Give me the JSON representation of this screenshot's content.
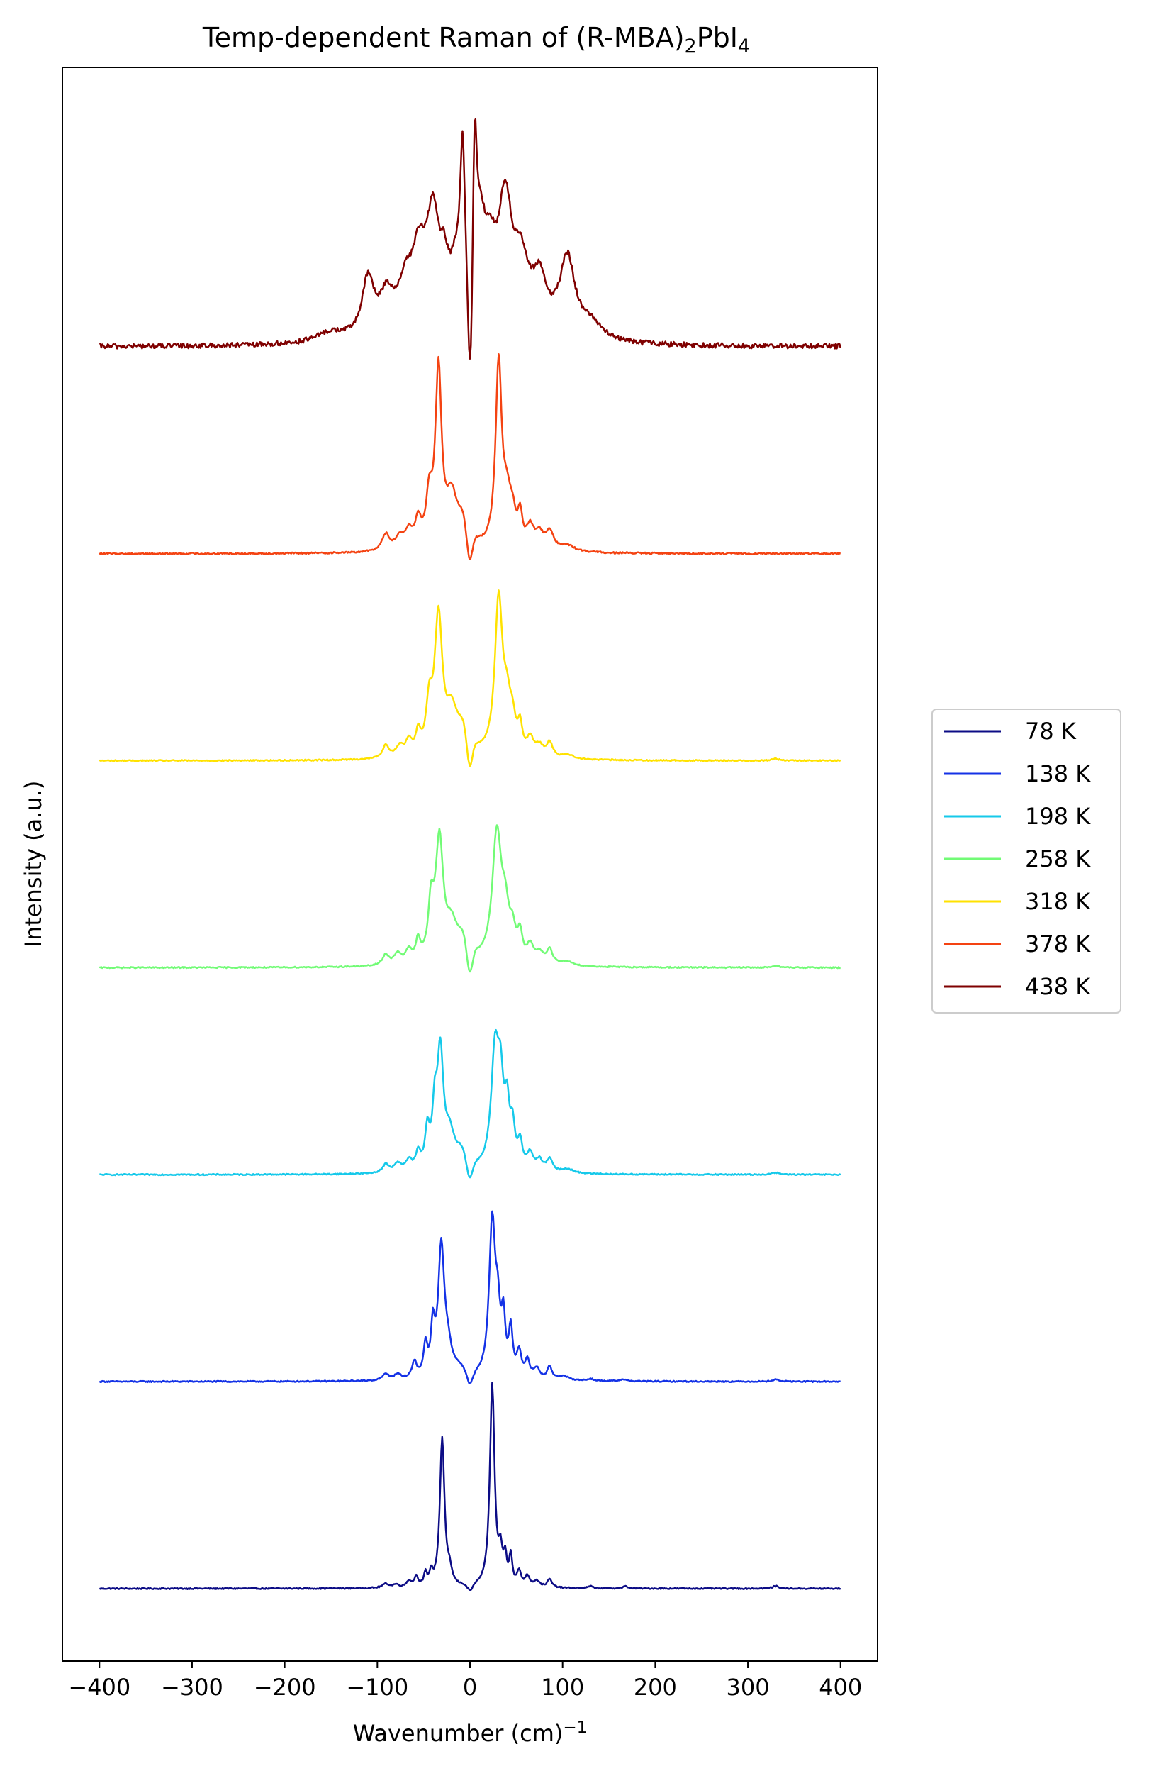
{
  "chart_data": {
    "type": "line",
    "title": "Temp-dependent Raman of (R-MBA)",
    "title_sub1": "2",
    "title_mid": "PbI",
    "title_sub2": "4",
    "xlabel": "Wavenumber (cm)",
    "xlabel_sup": "−1",
    "ylabel": "Intensity (a.u.)",
    "xlim": [
      -440,
      440
    ],
    "ylim": [
      -0.35,
      7.35
    ],
    "xticks": [
      -400,
      -300,
      -200,
      -100,
      0,
      100,
      200,
      300,
      400
    ],
    "xtick_labels": [
      "−400",
      "−300",
      "−200",
      "−100",
      "0",
      "100",
      "200",
      "300",
      "400"
    ],
    "y_ticks_shown": false,
    "grid": false,
    "legend_position": "right, outside",
    "series": [
      {
        "name": "78 K",
        "color": "#0c0c85",
        "offset": 0,
        "noise": 0.003,
        "peaks": [
          [
            -91,
            0.02,
            4
          ],
          [
            -80,
            0.015,
            4
          ],
          [
            -66,
            0.03,
            3
          ],
          [
            -58,
            0.05,
            2.5
          ],
          [
            -48,
            0.06,
            2
          ],
          [
            -42,
            0.06,
            2
          ],
          [
            -30,
            0.72,
            3
          ],
          [
            -22,
            0.06,
            3
          ],
          [
            24,
            0.98,
            3
          ],
          [
            33,
            0.14,
            2.5
          ],
          [
            38,
            0.12,
            2
          ],
          [
            44,
            0.14,
            2
          ],
          [
            53,
            0.07,
            2.5
          ],
          [
            62,
            0.05,
            3
          ],
          [
            72,
            0.03,
            4
          ],
          [
            86,
            0.04,
            3
          ],
          [
            130,
            0.01,
            3
          ],
          [
            168,
            0.01,
            3
          ],
          [
            330,
            0.012,
            4
          ]
        ],
        "dip": [
          0,
          0.06,
          3
        ]
      },
      {
        "name": "138 K",
        "color": "#1432e6",
        "offset": 1,
        "noise": 0.003,
        "peaks": [
          [
            -91,
            0.03,
            4
          ],
          [
            -78,
            0.025,
            5
          ],
          [
            -60,
            0.08,
            3
          ],
          [
            -48,
            0.15,
            2.5
          ],
          [
            -40,
            0.22,
            2.5
          ],
          [
            -31,
            0.62,
            4
          ],
          [
            -24,
            0.12,
            5
          ],
          [
            -12,
            0.04,
            8
          ],
          [
            24,
            0.75,
            4
          ],
          [
            30,
            0.25,
            3
          ],
          [
            36,
            0.25,
            2.5
          ],
          [
            44,
            0.22,
            2.5
          ],
          [
            53,
            0.12,
            3
          ],
          [
            62,
            0.08,
            3
          ],
          [
            72,
            0.05,
            4
          ],
          [
            86,
            0.06,
            3
          ],
          [
            100,
            0.02,
            8
          ],
          [
            130,
            0.01,
            4
          ],
          [
            165,
            0.01,
            4
          ],
          [
            330,
            0.01,
            4
          ]
        ],
        "dip": [
          0,
          0.08,
          3
        ]
      },
      {
        "name": "198 K",
        "color": "#16c9ea",
        "offset": 2,
        "noise": 0.003,
        "peaks": [
          [
            -91,
            0.04,
            4
          ],
          [
            -78,
            0.04,
            5
          ],
          [
            -66,
            0.05,
            4
          ],
          [
            -56,
            0.08,
            3
          ],
          [
            -46,
            0.18,
            3
          ],
          [
            -38,
            0.25,
            3
          ],
          [
            -32,
            0.55,
            4
          ],
          [
            -22,
            0.15,
            6
          ],
          [
            -10,
            0.08,
            8
          ],
          [
            27,
            0.55,
            5
          ],
          [
            33,
            0.35,
            4
          ],
          [
            40,
            0.25,
            3
          ],
          [
            46,
            0.18,
            3
          ],
          [
            54,
            0.12,
            3
          ],
          [
            65,
            0.08,
            4
          ],
          [
            75,
            0.05,
            4
          ],
          [
            86,
            0.06,
            4
          ],
          [
            105,
            0.02,
            8
          ],
          [
            330,
            0.01,
            4
          ]
        ],
        "dip": [
          0,
          0.12,
          3
        ]
      },
      {
        "name": "258 K",
        "color": "#72fb76",
        "offset": 3,
        "noise": 0.003,
        "peaks": [
          [
            -91,
            0.05,
            4
          ],
          [
            -78,
            0.05,
            5
          ],
          [
            -66,
            0.06,
            4
          ],
          [
            -56,
            0.1,
            3
          ],
          [
            -42,
            0.25,
            3.5
          ],
          [
            -33,
            0.58,
            5
          ],
          [
            -20,
            0.15,
            7
          ],
          [
            -8,
            0.1,
            9
          ],
          [
            29,
            0.62,
            6
          ],
          [
            38,
            0.2,
            5
          ],
          [
            46,
            0.12,
            4
          ],
          [
            54,
            0.12,
            3
          ],
          [
            65,
            0.08,
            4
          ],
          [
            75,
            0.05,
            5
          ],
          [
            86,
            0.07,
            4
          ],
          [
            105,
            0.02,
            8
          ],
          [
            330,
            0.01,
            4
          ]
        ],
        "dip": [
          0,
          0.2,
          3
        ]
      },
      {
        "name": "318 K",
        "color": "#ffe200",
        "offset": 4,
        "noise": 0.003,
        "peaks": [
          [
            -91,
            0.06,
            4
          ],
          [
            -76,
            0.05,
            5
          ],
          [
            -66,
            0.07,
            4
          ],
          [
            -56,
            0.1,
            3
          ],
          [
            -44,
            0.22,
            4
          ],
          [
            -34,
            0.66,
            5
          ],
          [
            -20,
            0.18,
            7
          ],
          [
            -8,
            0.12,
            9
          ],
          [
            31,
            0.75,
            5
          ],
          [
            40,
            0.2,
            5
          ],
          [
            46,
            0.12,
            4
          ],
          [
            54,
            0.12,
            3
          ],
          [
            65,
            0.08,
            4
          ],
          [
            75,
            0.05,
            5
          ],
          [
            86,
            0.07,
            4
          ],
          [
            105,
            0.02,
            8
          ],
          [
            330,
            0.01,
            4
          ]
        ],
        "dip": [
          0,
          0.22,
          3
        ]
      },
      {
        "name": "378 K",
        "color": "#f44312",
        "offset": 5,
        "noise": 0.004,
        "peaks": [
          [
            -91,
            0.08,
            5
          ],
          [
            -76,
            0.06,
            5
          ],
          [
            -66,
            0.08,
            5
          ],
          [
            -56,
            0.12,
            4
          ],
          [
            -44,
            0.22,
            4
          ],
          [
            -34,
            0.85,
            4
          ],
          [
            -20,
            0.22,
            7
          ],
          [
            -8,
            0.12,
            9
          ],
          [
            31,
            0.89,
            4
          ],
          [
            40,
            0.2,
            5
          ],
          [
            46,
            0.12,
            4
          ],
          [
            54,
            0.14,
            3
          ],
          [
            65,
            0.1,
            5
          ],
          [
            75,
            0.07,
            5
          ],
          [
            86,
            0.09,
            5
          ],
          [
            105,
            0.03,
            10
          ]
        ],
        "dip": [
          0,
          0.25,
          3
        ]
      },
      {
        "name": "438 K",
        "color": "#7f0000",
        "offset": 6,
        "noise": 0.012,
        "peaks": [
          [
            -150,
            0.05,
            20
          ],
          [
            -110,
            0.28,
            8
          ],
          [
            -90,
            0.18,
            9
          ],
          [
            -70,
            0.2,
            10
          ],
          [
            -55,
            0.35,
            10
          ],
          [
            -40,
            0.5,
            8
          ],
          [
            -28,
            0.22,
            6
          ],
          [
            -15,
            0.25,
            8
          ],
          [
            -8,
            0.7,
            3
          ],
          [
            5,
            0.8,
            3
          ],
          [
            12,
            0.35,
            6
          ],
          [
            22,
            0.3,
            8
          ],
          [
            38,
            0.6,
            9
          ],
          [
            55,
            0.3,
            10
          ],
          [
            75,
            0.25,
            10
          ],
          [
            105,
            0.38,
            10
          ],
          [
            130,
            0.08,
            15
          ]
        ],
        "dip": [
          0,
          0.7,
          2.2
        ]
      }
    ]
  }
}
